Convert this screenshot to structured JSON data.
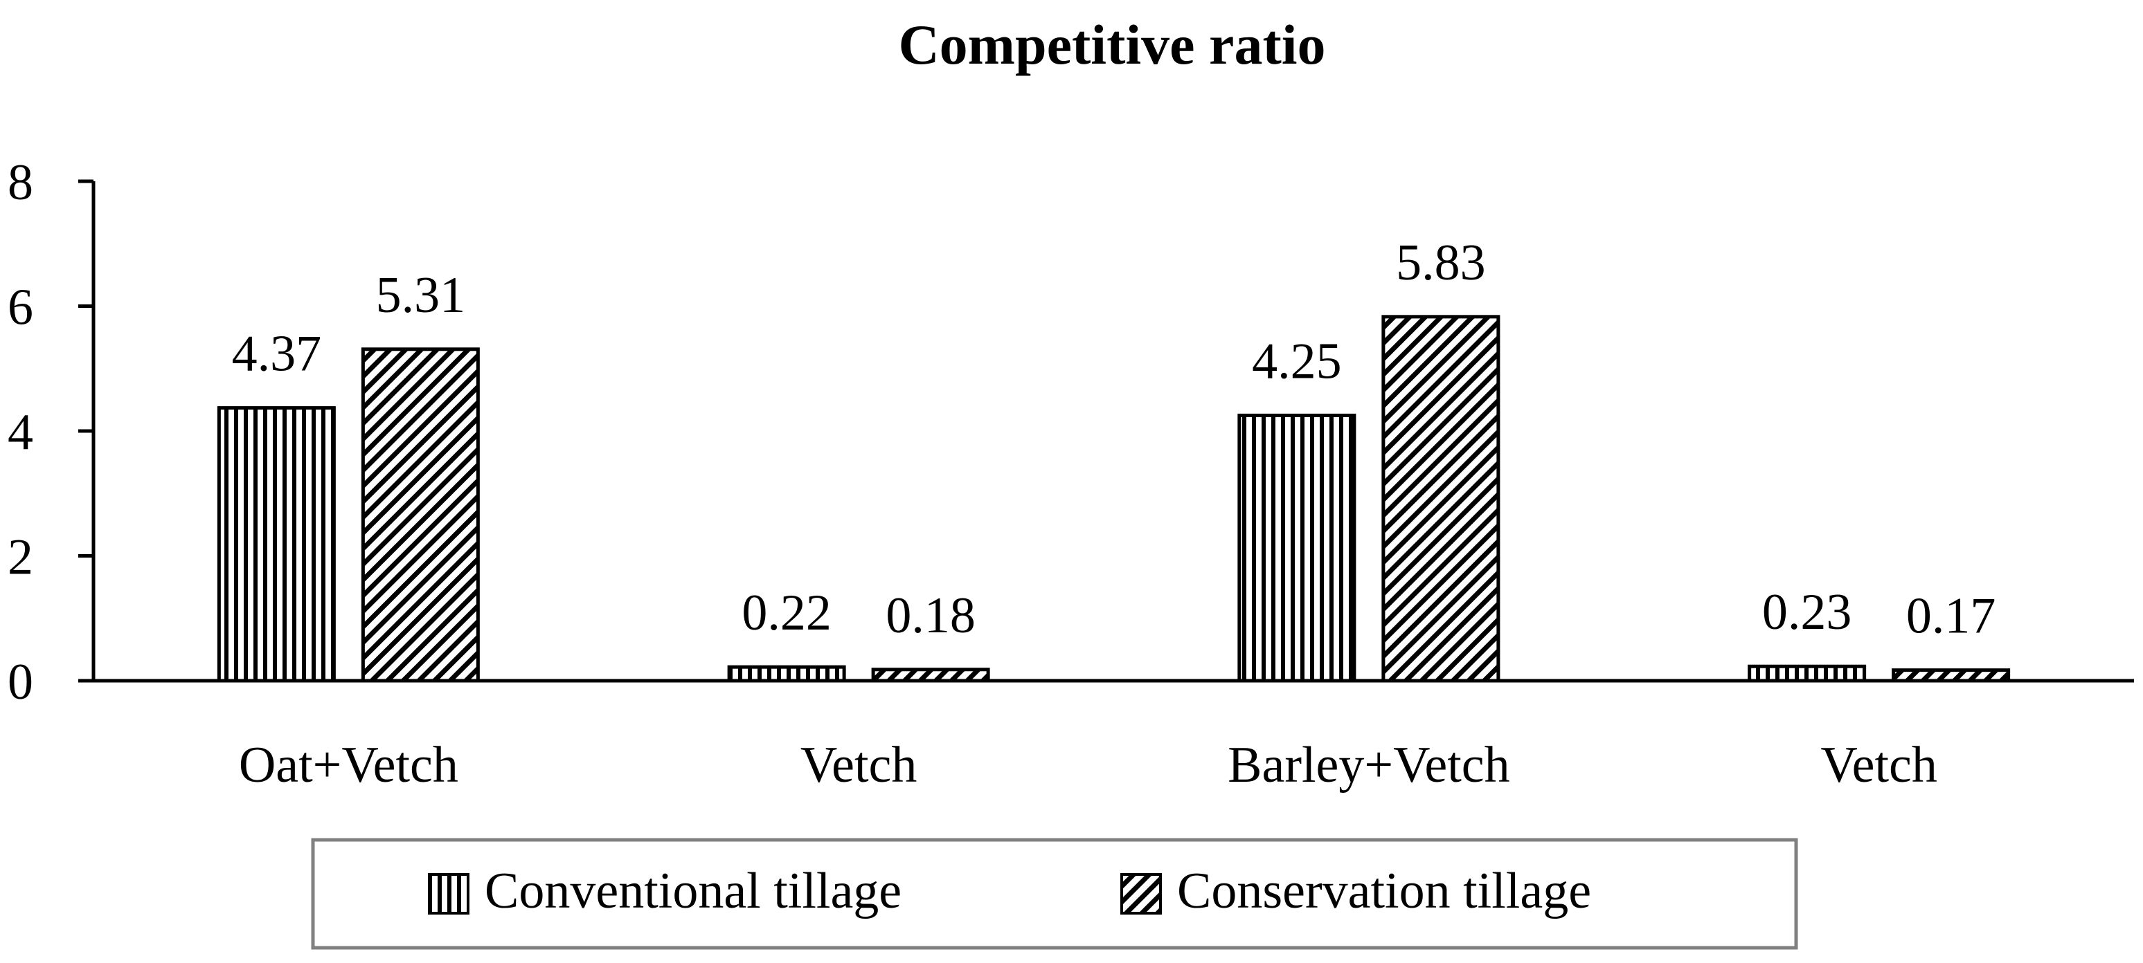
{
  "chart_data": {
    "type": "bar",
    "title": "Competitive ratio",
    "xlabel": "",
    "ylabel": "",
    "categories": [
      "Oat+Vetch",
      "Vetch",
      "Barley+Vetch",
      "Vetch"
    ],
    "ylim": [
      0,
      8
    ],
    "yticks": [
      0,
      2,
      4,
      6,
      8
    ],
    "grid": false,
    "legend_position": "bottom",
    "series": [
      {
        "name": "Conventional tillage",
        "pattern": "vertical-lines",
        "values": [
          4.37,
          0.22,
          4.25,
          0.23
        ],
        "labels": [
          "4.37",
          "0.22",
          "4.25",
          "0.23"
        ]
      },
      {
        "name": "Conservation tillage",
        "pattern": "diagonal-lines",
        "values": [
          5.31,
          0.18,
          5.83,
          0.17
        ],
        "labels": [
          "5.31",
          "0.18",
          "5.83",
          "0.17"
        ]
      }
    ],
    "colors": {
      "bar_stroke": "#000000",
      "pattern_line": "#000000",
      "background": "#ffffff",
      "legend_border": "#808080"
    }
  }
}
